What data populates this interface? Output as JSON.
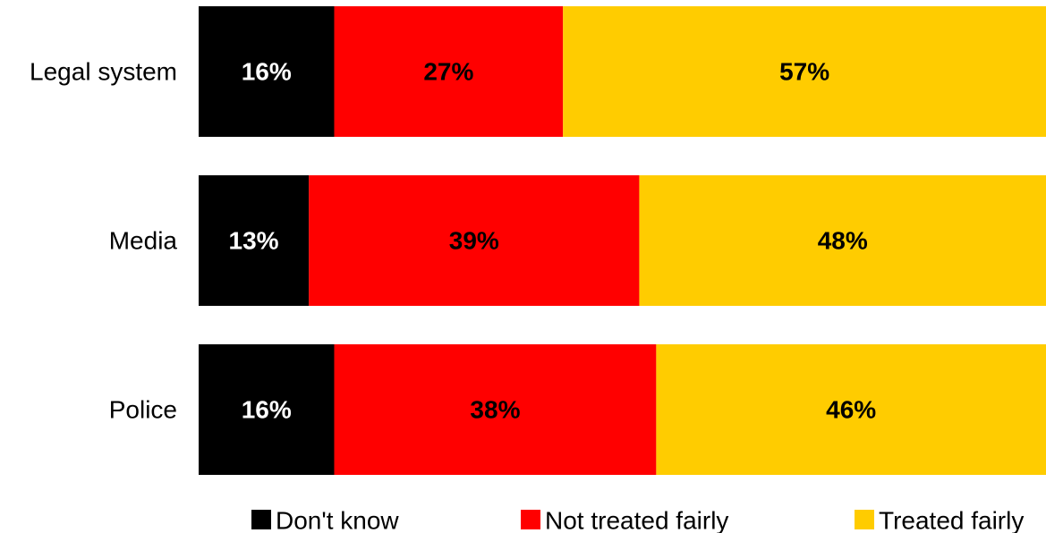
{
  "chart_data": {
    "type": "bar",
    "orientation": "horizontal",
    "stacked": true,
    "categories": [
      "Legal system",
      "Media",
      "Police"
    ],
    "series": [
      {
        "name": "Don't know",
        "values": [
          16,
          13,
          16
        ],
        "labels": [
          "16%",
          "13%",
          "16%"
        ],
        "color": "#000000",
        "label_color": "#ffffff"
      },
      {
        "name": "Not treated fairly",
        "values": [
          27,
          39,
          38
        ],
        "labels": [
          "27%",
          "39%",
          "38%"
        ],
        "color": "#ff0000",
        "label_color": "#000000"
      },
      {
        "name": "Treated fairly",
        "values": [
          57,
          48,
          46
        ],
        "labels": [
          "57%",
          "48%",
          "46%"
        ],
        "color": "#ffcc00",
        "label_color": "#000000"
      }
    ],
    "xlim": [
      0,
      100
    ],
    "legend": "bottom",
    "grid": false
  }
}
